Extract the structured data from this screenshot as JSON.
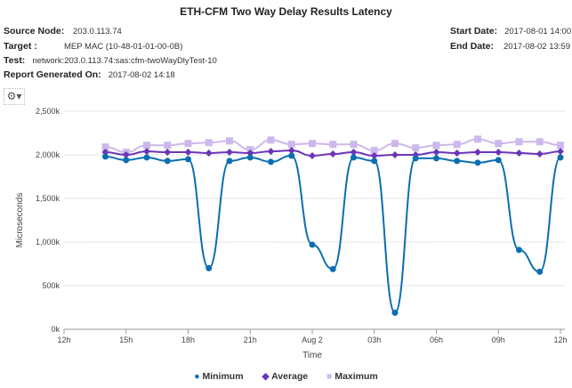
{
  "header": {
    "title": "ETH-CFM Two Way Delay Results Latency",
    "source_node_label": "Source Node:",
    "source_node": "203.0.113.74",
    "target_label": "Target :",
    "target": "MEP MAC (10-48-01-01-00-0B)",
    "test_label": "Test:",
    "test": "network:203.0.113.74:sas:cfm-twoWayDlyTest-10",
    "report_label": "Report Generated On:",
    "report": "2017-08-02 14:18",
    "start_label": "Start Date:",
    "start": "2017-08-01 14:00",
    "end_label": "End Date:",
    "end": "2017-08-02 13:59"
  },
  "toolbar": {
    "settings_icon": "gears-icon"
  },
  "chart_data": {
    "type": "line",
    "title": "",
    "xlabel": "Time",
    "ylabel": "Microseconds",
    "ylim": [
      0,
      2500
    ],
    "yticks": [
      "0k",
      "500k",
      "1,000k",
      "1,500k",
      "2,000k",
      "2,500k"
    ],
    "xticks": [
      "12h",
      "15h",
      "18h",
      "21h",
      "Aug 2",
      "03h",
      "06h",
      "09h",
      "12h"
    ],
    "x": [
      "14h",
      "15h",
      "16h",
      "17h",
      "18h",
      "19h",
      "20h",
      "21h",
      "22h",
      "23h",
      "00h",
      "01h",
      "02h",
      "03h",
      "04h",
      "05h",
      "06h",
      "07h",
      "08h",
      "09h",
      "10h",
      "11h",
      "12h"
    ],
    "grid": true,
    "legend": "bottom",
    "series": [
      {
        "name": "Minimum",
        "color": "#0a6fb0",
        "values": [
          1980,
          1940,
          1970,
          1930,
          1950,
          700,
          1930,
          1970,
          1920,
          1990,
          970,
          690,
          1970,
          1930,
          190,
          1960,
          1960,
          1930,
          1910,
          1940,
          910,
          660,
          1970
        ]
      },
      {
        "name": "Average",
        "color": "#6a35b8",
        "values": [
          2030,
          2000,
          2040,
          2030,
          2030,
          2020,
          2030,
          2020,
          2040,
          2050,
          1990,
          2010,
          2030,
          1990,
          2000,
          2000,
          2030,
          2020,
          2030,
          2030,
          2020,
          2010,
          2040
        ]
      },
      {
        "name": "Maximum",
        "color": "#cdb8ec",
        "values": [
          2090,
          2030,
          2110,
          2110,
          2130,
          2140,
          2160,
          2060,
          2170,
          2120,
          2130,
          2120,
          2120,
          2050,
          2130,
          2080,
          2110,
          2120,
          2180,
          2130,
          2150,
          2150,
          2110
        ]
      }
    ]
  }
}
